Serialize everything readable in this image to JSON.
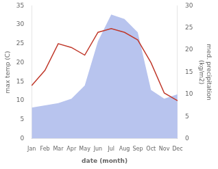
{
  "chart_data": {
    "type": "line",
    "categories": [
      "Jan",
      "Feb",
      "Mar",
      "Apr",
      "May",
      "Jun",
      "Jul",
      "Aug",
      "Sep",
      "Oct",
      "Nov",
      "Dec"
    ],
    "xlabel": "date (month)",
    "ylabel": "max temp (C)",
    "y2label": "med. precipitation\n(kg/m2)",
    "ylim": [
      0,
      35
    ],
    "yticks": [
      0,
      5,
      10,
      15,
      20,
      25,
      30,
      35
    ],
    "y2lim": [
      0,
      30
    ],
    "y2ticks": [
      0,
      5,
      10,
      15,
      20,
      25,
      30
    ],
    "grid": false,
    "series": [
      {
        "type": "area",
        "axis": "y2",
        "color": "#b8c4ee",
        "values": [
          7,
          7.5,
          8,
          9,
          12,
          22,
          28,
          27,
          24,
          11,
          9,
          10
        ]
      },
      {
        "type": "line",
        "color": "#c0392b",
        "values": [
          14,
          18,
          25,
          24,
          22,
          28,
          29,
          28,
          26,
          20,
          12,
          10
        ]
      }
    ]
  }
}
